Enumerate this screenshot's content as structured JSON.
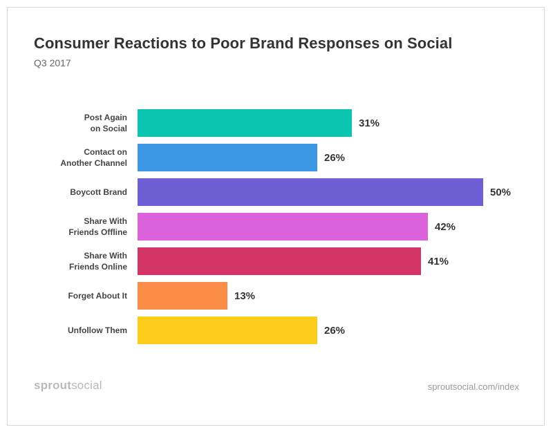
{
  "chart_data": {
    "type": "bar",
    "orientation": "horizontal",
    "title": "Consumer Reactions to Poor Brand Responses on Social",
    "subtitle": "Q3 2017",
    "categories": [
      [
        "Post Again",
        "on Social"
      ],
      [
        "Contact on",
        "Another Channel"
      ],
      [
        "Boycott Brand"
      ],
      [
        "Share With",
        "Friends Offline"
      ],
      [
        "Share With",
        "Friends Online"
      ],
      [
        "Forget About It"
      ],
      [
        "Unfollow Them"
      ]
    ],
    "values": [
      31,
      26,
      50,
      42,
      41,
      13,
      26
    ],
    "value_labels": [
      "31%",
      "26%",
      "50%",
      "42%",
      "41%",
      "13%",
      "26%"
    ],
    "colors": [
      "#0bc5b1",
      "#3b97e3",
      "#6e5ed5",
      "#dc62dc",
      "#d23565",
      "#fb8c48",
      "#fccd1a"
    ],
    "xlim": [
      0,
      50
    ],
    "grid": false,
    "legend": "none"
  },
  "footer": {
    "brand_part1": "sprout",
    "brand_part2": "social",
    "source": "sproutsocial.com/index"
  }
}
